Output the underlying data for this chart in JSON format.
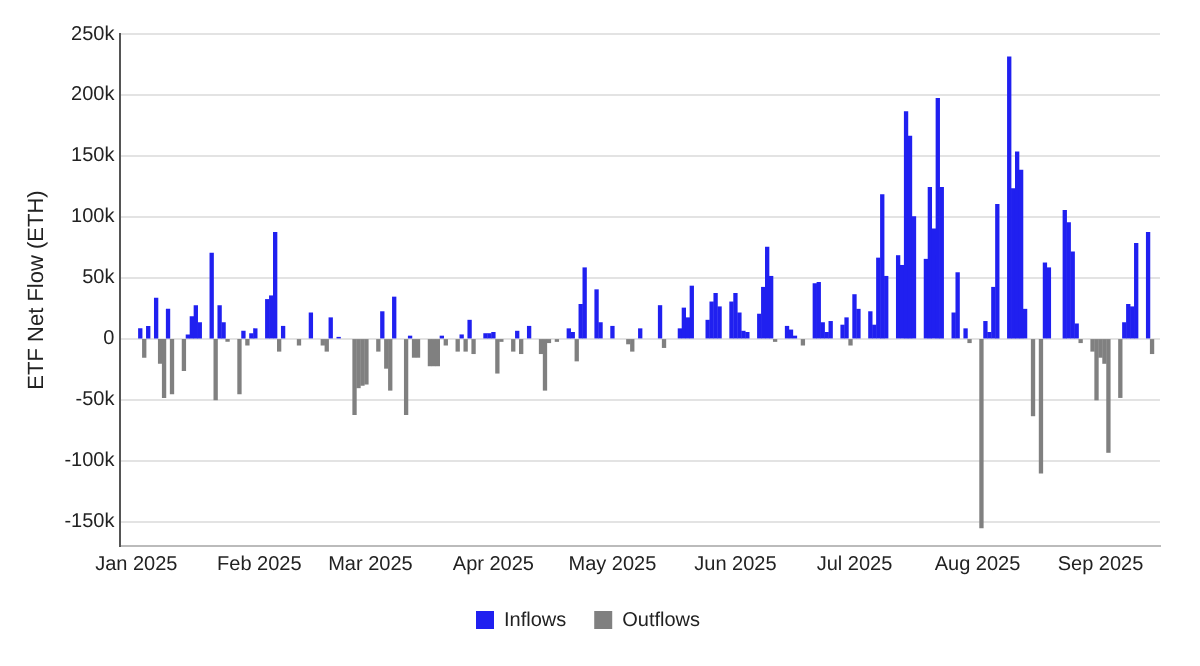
{
  "chart_data": {
    "type": "bar",
    "ylabel": "ETF Net Flow (ETH)",
    "xlim": [
      "2024-12-28",
      "2025-09-16"
    ],
    "xticks": [
      {
        "value": "2025-01-01",
        "label": "Jan 2025"
      },
      {
        "value": "2025-02-01",
        "label": "Feb 2025"
      },
      {
        "value": "2025-03-01",
        "label": "Mar 2025"
      },
      {
        "value": "2025-04-01",
        "label": "Apr 2025"
      },
      {
        "value": "2025-05-01",
        "label": "May 2025"
      },
      {
        "value": "2025-06-01",
        "label": "Jun 2025"
      },
      {
        "value": "2025-07-01",
        "label": "Jul 2025"
      },
      {
        "value": "2025-08-01",
        "label": "Aug 2025"
      },
      {
        "value": "2025-09-01",
        "label": "Sep 2025"
      }
    ],
    "ylim": [
      -170000,
      250000
    ],
    "yticks": [
      {
        "value": -150000,
        "label": "-150k"
      },
      {
        "value": -100000,
        "label": "-100k"
      },
      {
        "value": -50000,
        "label": "-50k"
      },
      {
        "value": 0,
        "label": "0"
      },
      {
        "value": 50000,
        "label": "50k"
      },
      {
        "value": 100000,
        "label": "100k"
      },
      {
        "value": 150000,
        "label": "150k"
      },
      {
        "value": 200000,
        "label": "200k"
      },
      {
        "value": 250000,
        "label": "250k"
      }
    ],
    "grid": "y",
    "legend": "bottom",
    "series": [
      {
        "name": "Inflows",
        "color": "#2020f0",
        "x": [
          "2025-01-02",
          "2025-01-04",
          "2025-01-06",
          "2025-01-09",
          "2025-01-14",
          "2025-01-15",
          "2025-01-16",
          "2025-01-17",
          "2025-01-20",
          "2025-01-22",
          "2025-01-23",
          "2025-01-28",
          "2025-01-30",
          "2025-01-31",
          "2025-02-03",
          "2025-02-04",
          "2025-02-05",
          "2025-02-07",
          "2025-02-14",
          "2025-02-19",
          "2025-02-21",
          "2025-03-04",
          "2025-03-07",
          "2025-03-11",
          "2025-03-19",
          "2025-03-24",
          "2025-03-26",
          "2025-03-30",
          "2025-03-31",
          "2025-04-01",
          "2025-04-07",
          "2025-04-10",
          "2025-04-20",
          "2025-04-21",
          "2025-04-23",
          "2025-04-24",
          "2025-04-27",
          "2025-04-28",
          "2025-05-01",
          "2025-05-08",
          "2025-05-13",
          "2025-05-18",
          "2025-05-19",
          "2025-05-20",
          "2025-05-21",
          "2025-05-25",
          "2025-05-26",
          "2025-05-27",
          "2025-05-28",
          "2025-05-31",
          "2025-06-01",
          "2025-06-02",
          "2025-06-03",
          "2025-06-04",
          "2025-06-07",
          "2025-06-08",
          "2025-06-09",
          "2025-06-10",
          "2025-06-14",
          "2025-06-15",
          "2025-06-16",
          "2025-06-21",
          "2025-06-22",
          "2025-06-23",
          "2025-06-24",
          "2025-06-25",
          "2025-06-28",
          "2025-06-29",
          "2025-07-01",
          "2025-07-02",
          "2025-07-05",
          "2025-07-06",
          "2025-07-07",
          "2025-07-08",
          "2025-07-09",
          "2025-07-12",
          "2025-07-13",
          "2025-07-14",
          "2025-07-15",
          "2025-07-16",
          "2025-07-19",
          "2025-07-20",
          "2025-07-21",
          "2025-07-22",
          "2025-07-23",
          "2025-07-26",
          "2025-07-27",
          "2025-07-29",
          "2025-08-03",
          "2025-08-04",
          "2025-08-05",
          "2025-08-06",
          "2025-08-09",
          "2025-08-10",
          "2025-08-11",
          "2025-08-12",
          "2025-08-13",
          "2025-08-18",
          "2025-08-19",
          "2025-08-23",
          "2025-08-24",
          "2025-08-25",
          "2025-08-26",
          "2025-09-07",
          "2025-09-08",
          "2025-09-09",
          "2025-09-10",
          "2025-09-13"
        ],
        "values": [
          8000,
          10000,
          33000,
          24000,
          3000,
          18000,
          27000,
          13000,
          70000,
          27000,
          13000,
          6000,
          4000,
          8000,
          32000,
          35000,
          87000,
          10000,
          21000,
          17000,
          1000,
          22000,
          34000,
          2000,
          2000,
          3000,
          15000,
          4000,
          4000,
          5000,
          6000,
          10000,
          8000,
          5000,
          28000,
          58000,
          40000,
          13000,
          10000,
          8000,
          27000,
          8000,
          25000,
          17000,
          43000,
          15000,
          30000,
          37000,
          26000,
          30000,
          37000,
          21000,
          6000,
          5000,
          20000,
          42000,
          75000,
          51000,
          10000,
          7000,
          2000,
          45000,
          46000,
          13000,
          5000,
          14000,
          11000,
          17000,
          36000,
          24000,
          22000,
          11000,
          66000,
          118000,
          51000,
          68000,
          60000,
          186000,
          166000,
          100000,
          65000,
          124000,
          90000,
          197000,
          124000,
          21000,
          54000,
          8000,
          14000,
          5000,
          42000,
          110000,
          231000,
          123000,
          153000,
          138000,
          24000,
          62000,
          58000,
          105000,
          95000,
          71000,
          12000,
          13000,
          28000,
          26000,
          78000,
          87000
        ]
      },
      {
        "name": "Outflows",
        "color": "#808080",
        "x": [
          "2025-01-03",
          "2025-01-07",
          "2025-01-08",
          "2025-01-10",
          "2025-01-13",
          "2025-01-21",
          "2025-01-24",
          "2025-01-27",
          "2025-01-29",
          "2025-02-06",
          "2025-02-11",
          "2025-02-17",
          "2025-02-18",
          "2025-02-25",
          "2025-02-26",
          "2025-02-27",
          "2025-02-28",
          "2025-03-03",
          "2025-03-05",
          "2025-03-06",
          "2025-03-10",
          "2025-03-12",
          "2025-03-13",
          "2025-03-16",
          "2025-03-17",
          "2025-03-18",
          "2025-03-20",
          "2025-03-23",
          "2025-03-25",
          "2025-03-27",
          "2025-04-02",
          "2025-04-03",
          "2025-04-06",
          "2025-04-08",
          "2025-04-13",
          "2025-04-14",
          "2025-04-15",
          "2025-04-17",
          "2025-04-22",
          "2025-05-05",
          "2025-05-06",
          "2025-05-14",
          "2025-06-11",
          "2025-06-18",
          "2025-06-30",
          "2025-07-30",
          "2025-08-02",
          "2025-08-15",
          "2025-08-17",
          "2025-08-27",
          "2025-08-30",
          "2025-08-31",
          "2025-09-01",
          "2025-09-02",
          "2025-09-03",
          "2025-09-06",
          "2025-09-14"
        ],
        "values": [
          -15000,
          -20000,
          -48000,
          -45000,
          -26000,
          -50000,
          -2000,
          -45000,
          -5000,
          -10000,
          -5000,
          -5000,
          -10000,
          -62000,
          -40000,
          -38000,
          -37000,
          -10000,
          -24000,
          -42000,
          -62000,
          -15000,
          -15000,
          -22000,
          -22000,
          -22000,
          -5000,
          -10000,
          -10000,
          -12000,
          -28000,
          -2000,
          -10000,
          -12000,
          -12000,
          -42000,
          -3000,
          -2000,
          -18000,
          -4000,
          -10000,
          -7000,
          -2000,
          -5000,
          -5000,
          -3000,
          -155000,
          -63000,
          -110000,
          -3000,
          -10000,
          -50000,
          -15000,
          -20000,
          -93000,
          -48000,
          -12000
        ]
      }
    ]
  }
}
